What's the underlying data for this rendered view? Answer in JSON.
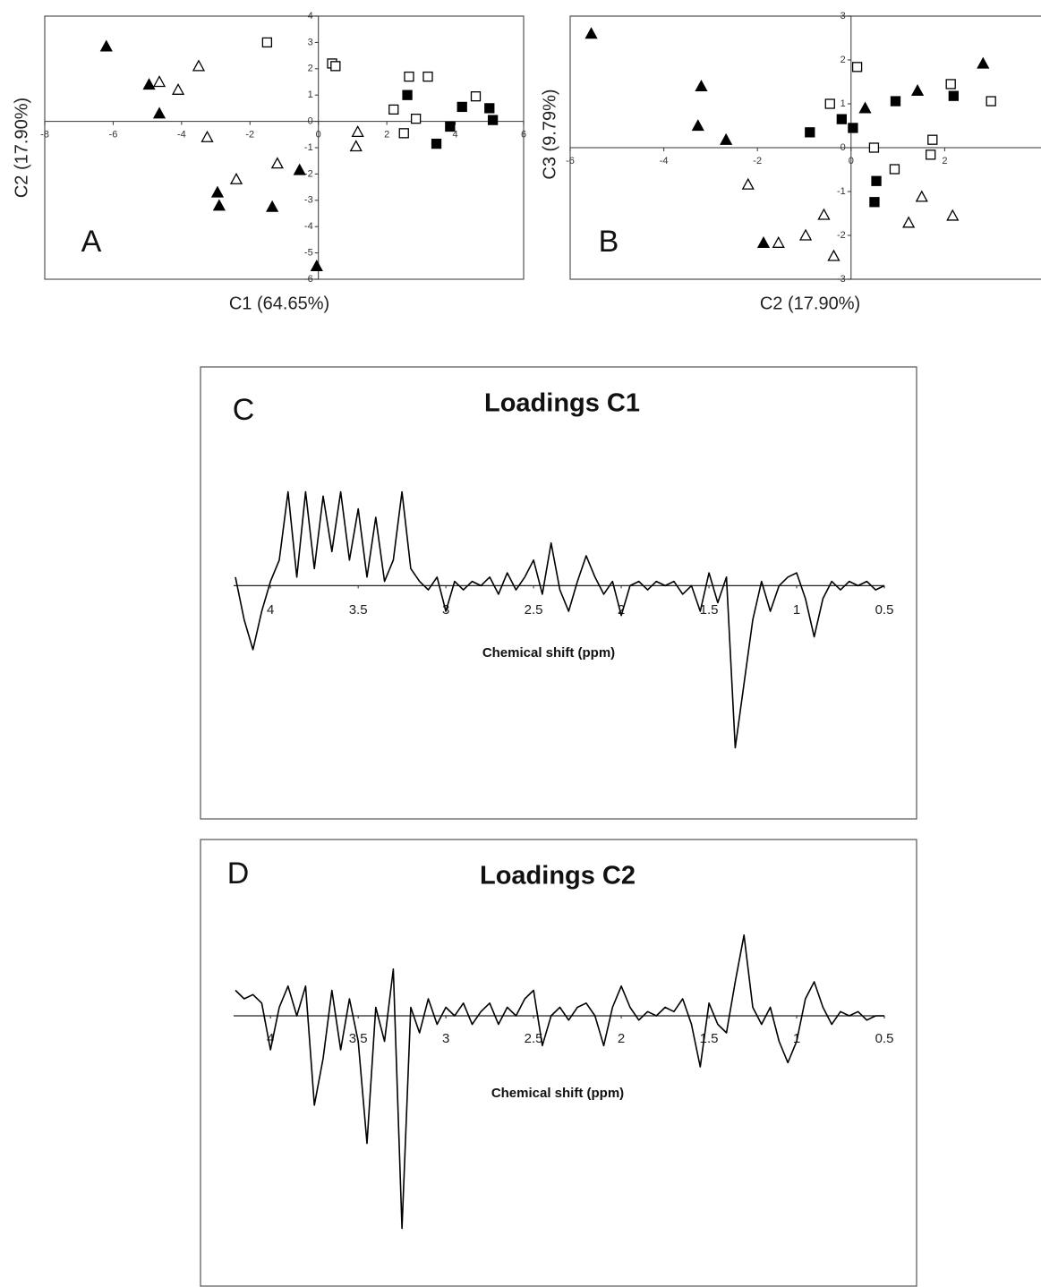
{
  "chart_data": [
    {
      "type": "scatter",
      "panel_label": "A",
      "x_label": "C1 (64.65%)",
      "y_label": "C2 (17.90%)",
      "xlim": [
        -8,
        6
      ],
      "ylim": [
        -6,
        4
      ],
      "xticks": [
        -8,
        -6,
        -4,
        -2,
        0,
        2,
        4,
        6
      ],
      "yticks": [
        -6,
        -5,
        -4,
        -3,
        -2,
        -1,
        0,
        1,
        2,
        3,
        4
      ],
      "grid": false,
      "series": [
        {
          "marker": "triangle",
          "filled": true,
          "color": "#000000",
          "x": [
            -6.2,
            -4.95,
            -4.65,
            -2.95,
            -2.9,
            -1.35,
            -0.55,
            -0.05
          ],
          "values": [
            2.85,
            1.4,
            0.3,
            -2.7,
            -3.2,
            -3.25,
            -1.85,
            -5.5
          ]
        },
        {
          "marker": "triangle",
          "filled": false,
          "color": "#000000",
          "x": [
            -4.65,
            -4.1,
            -3.5,
            -3.25,
            -2.4,
            -1.2,
            1.15,
            1.1
          ],
          "values": [
            1.5,
            1.2,
            2.1,
            -0.6,
            -2.2,
            -1.6,
            -0.4,
            -0.95
          ]
        },
        {
          "marker": "square",
          "filled": false,
          "color": "#000000",
          "x": [
            -1.5,
            0.4,
            0.5,
            2.2,
            2.65,
            2.5,
            2.85,
            3.2,
            4.6
          ],
          "values": [
            3.0,
            2.2,
            2.1,
            0.45,
            1.7,
            -0.45,
            0.1,
            1.7,
            0.95
          ]
        },
        {
          "marker": "square",
          "filled": true,
          "color": "#000000",
          "x": [
            2.6,
            3.45,
            3.85,
            4.2,
            5.0,
            5.1
          ],
          "values": [
            1.0,
            -0.85,
            -0.2,
            0.55,
            0.5,
            0.05
          ]
        }
      ]
    },
    {
      "type": "scatter",
      "panel_label": "B",
      "x_label": "C2 (17.90%)",
      "y_label": "C3 (9.79%)",
      "xlim": [
        -6,
        4
      ],
      "ylim": [
        -3,
        3
      ],
      "xticks": [
        -6,
        -4,
        -2,
        0,
        2
      ],
      "yticks": [
        -3,
        -2,
        -1,
        0,
        1,
        2,
        3
      ],
      "grid": false,
      "series": [
        {
          "marker": "triangle",
          "filled": true,
          "color": "#000000",
          "x": [
            -5.55,
            -3.2,
            -3.27,
            -2.67,
            -1.87,
            0.3,
            1.42,
            2.82
          ],
          "values": [
            2.6,
            1.4,
            0.5,
            0.18,
            -2.17,
            0.9,
            1.3,
            1.92
          ]
        },
        {
          "marker": "triangle",
          "filled": false,
          "color": "#000000",
          "x": [
            -2.2,
            -1.55,
            -0.97,
            -0.58,
            -0.37,
            1.23,
            1.51,
            2.17
          ],
          "values": [
            -0.84,
            -2.17,
            -2.0,
            -1.53,
            -2.47,
            -1.71,
            -1.12,
            -1.55
          ]
        },
        {
          "marker": "square",
          "filled": false,
          "color": "#000000",
          "x": [
            -0.45,
            0.13,
            0.49,
            0.93,
            1.7,
            1.74,
            2.13,
            2.99
          ],
          "values": [
            1.0,
            1.84,
            0.0,
            -0.49,
            -0.16,
            0.18,
            1.45,
            1.06
          ]
        },
        {
          "marker": "square",
          "filled": true,
          "color": "#000000",
          "x": [
            -0.88,
            -0.2,
            0.04,
            0.54,
            0.5,
            0.95,
            2.19
          ],
          "values": [
            0.35,
            0.65,
            0.45,
            -0.76,
            -1.24,
            1.06,
            1.18
          ]
        }
      ]
    },
    {
      "type": "line",
      "panel_label": "C",
      "title": "Loadings C1",
      "x_label": "Chemical shift (ppm)",
      "color": "#000000",
      "xlim": [
        4.2,
        0.5
      ],
      "ylim": [
        -2,
        1.2
      ],
      "xticks": [
        4,
        3.5,
        3,
        2.5,
        2,
        1.5,
        1,
        0.5
      ],
      "x": [
        4.2,
        4.15,
        4.1,
        4.05,
        4.0,
        3.95,
        3.9,
        3.85,
        3.8,
        3.75,
        3.7,
        3.65,
        3.6,
        3.55,
        3.5,
        3.45,
        3.4,
        3.35,
        3.3,
        3.25,
        3.2,
        3.15,
        3.1,
        3.05,
        3.0,
        2.95,
        2.9,
        2.85,
        2.8,
        2.75,
        2.7,
        2.65,
        2.6,
        2.55,
        2.5,
        2.45,
        2.4,
        2.35,
        2.3,
        2.25,
        2.2,
        2.15,
        2.1,
        2.05,
        2.0,
        1.95,
        1.9,
        1.85,
        1.8,
        1.75,
        1.7,
        1.65,
        1.6,
        1.55,
        1.5,
        1.45,
        1.4,
        1.35,
        1.3,
        1.25,
        1.2,
        1.15,
        1.1,
        1.05,
        1.0,
        0.95,
        0.9,
        0.85,
        0.8,
        0.75,
        0.7,
        0.65,
        0.6,
        0.55,
        0.5
      ],
      "values": [
        0.1,
        -0.4,
        -0.75,
        -0.3,
        0.05,
        0.3,
        1.1,
        0.1,
        1.1,
        0.2,
        1.05,
        0.4,
        1.1,
        0.3,
        0.9,
        0.1,
        0.8,
        0.05,
        0.3,
        1.1,
        0.2,
        0.05,
        -0.05,
        0.1,
        -0.3,
        0.05,
        -0.05,
        0.05,
        0.0,
        0.1,
        -0.1,
        0.15,
        -0.05,
        0.1,
        0.3,
        -0.1,
        0.5,
        -0.05,
        -0.3,
        0.05,
        0.35,
        0.1,
        -0.1,
        0.05,
        -0.35,
        0.0,
        0.05,
        -0.05,
        0.05,
        0.0,
        0.05,
        -0.1,
        0.0,
        -0.3,
        0.15,
        -0.2,
        0.1,
        -1.9,
        -1.15,
        -0.4,
        0.05,
        -0.3,
        0.0,
        0.1,
        0.15,
        -0.15,
        -0.6,
        -0.15,
        0.05,
        -0.05,
        0.05,
        0.0,
        0.05,
        -0.05,
        0.0
      ]
    },
    {
      "type": "line",
      "panel_label": "D",
      "title": "Loadings C2",
      "x_label": "Chemical shift (ppm)",
      "color": "#000000",
      "xlim": [
        4.2,
        0.5
      ],
      "ylim": [
        -2.6,
        1.2
      ],
      "xticks": [
        4,
        3.5,
        3,
        2.5,
        2,
        1.5,
        1,
        0.5
      ],
      "x": [
        4.2,
        4.15,
        4.1,
        4.05,
        4.0,
        3.95,
        3.9,
        3.85,
        3.8,
        3.75,
        3.7,
        3.65,
        3.6,
        3.55,
        3.5,
        3.45,
        3.4,
        3.35,
        3.3,
        3.25,
        3.2,
        3.15,
        3.1,
        3.05,
        3.0,
        2.95,
        2.9,
        2.85,
        2.8,
        2.75,
        2.7,
        2.65,
        2.6,
        2.55,
        2.5,
        2.45,
        2.4,
        2.35,
        2.3,
        2.25,
        2.2,
        2.15,
        2.1,
        2.05,
        2.0,
        1.95,
        1.9,
        1.85,
        1.8,
        1.75,
        1.7,
        1.65,
        1.6,
        1.55,
        1.5,
        1.45,
        1.4,
        1.35,
        1.3,
        1.25,
        1.2,
        1.15,
        1.1,
        1.05,
        1.0,
        0.95,
        0.9,
        0.85,
        0.8,
        0.75,
        0.7,
        0.65,
        0.6,
        0.55,
        0.5
      ],
      "values": [
        0.3,
        0.2,
        0.25,
        0.15,
        -0.4,
        0.1,
        0.35,
        0.0,
        0.35,
        -1.05,
        -0.5,
        0.3,
        -0.4,
        0.2,
        -0.3,
        -1.5,
        0.1,
        -0.3,
        0.55,
        -2.5,
        0.1,
        -0.2,
        0.2,
        -0.1,
        0.1,
        0.0,
        0.15,
        -0.1,
        0.05,
        0.15,
        -0.1,
        0.1,
        0.0,
        0.2,
        0.3,
        -0.35,
        0.0,
        0.1,
        -0.05,
        0.1,
        0.15,
        0.0,
        -0.35,
        0.1,
        0.35,
        0.1,
        -0.05,
        0.05,
        0.0,
        0.1,
        0.05,
        0.2,
        -0.1,
        -0.6,
        0.15,
        -0.1,
        -0.2,
        0.4,
        0.95,
        0.1,
        -0.1,
        0.1,
        -0.3,
        -0.55,
        -0.3,
        0.2,
        0.4,
        0.1,
        -0.1,
        0.05,
        0.0,
        0.05,
        -0.05,
        0.0,
        0.0
      ]
    }
  ]
}
